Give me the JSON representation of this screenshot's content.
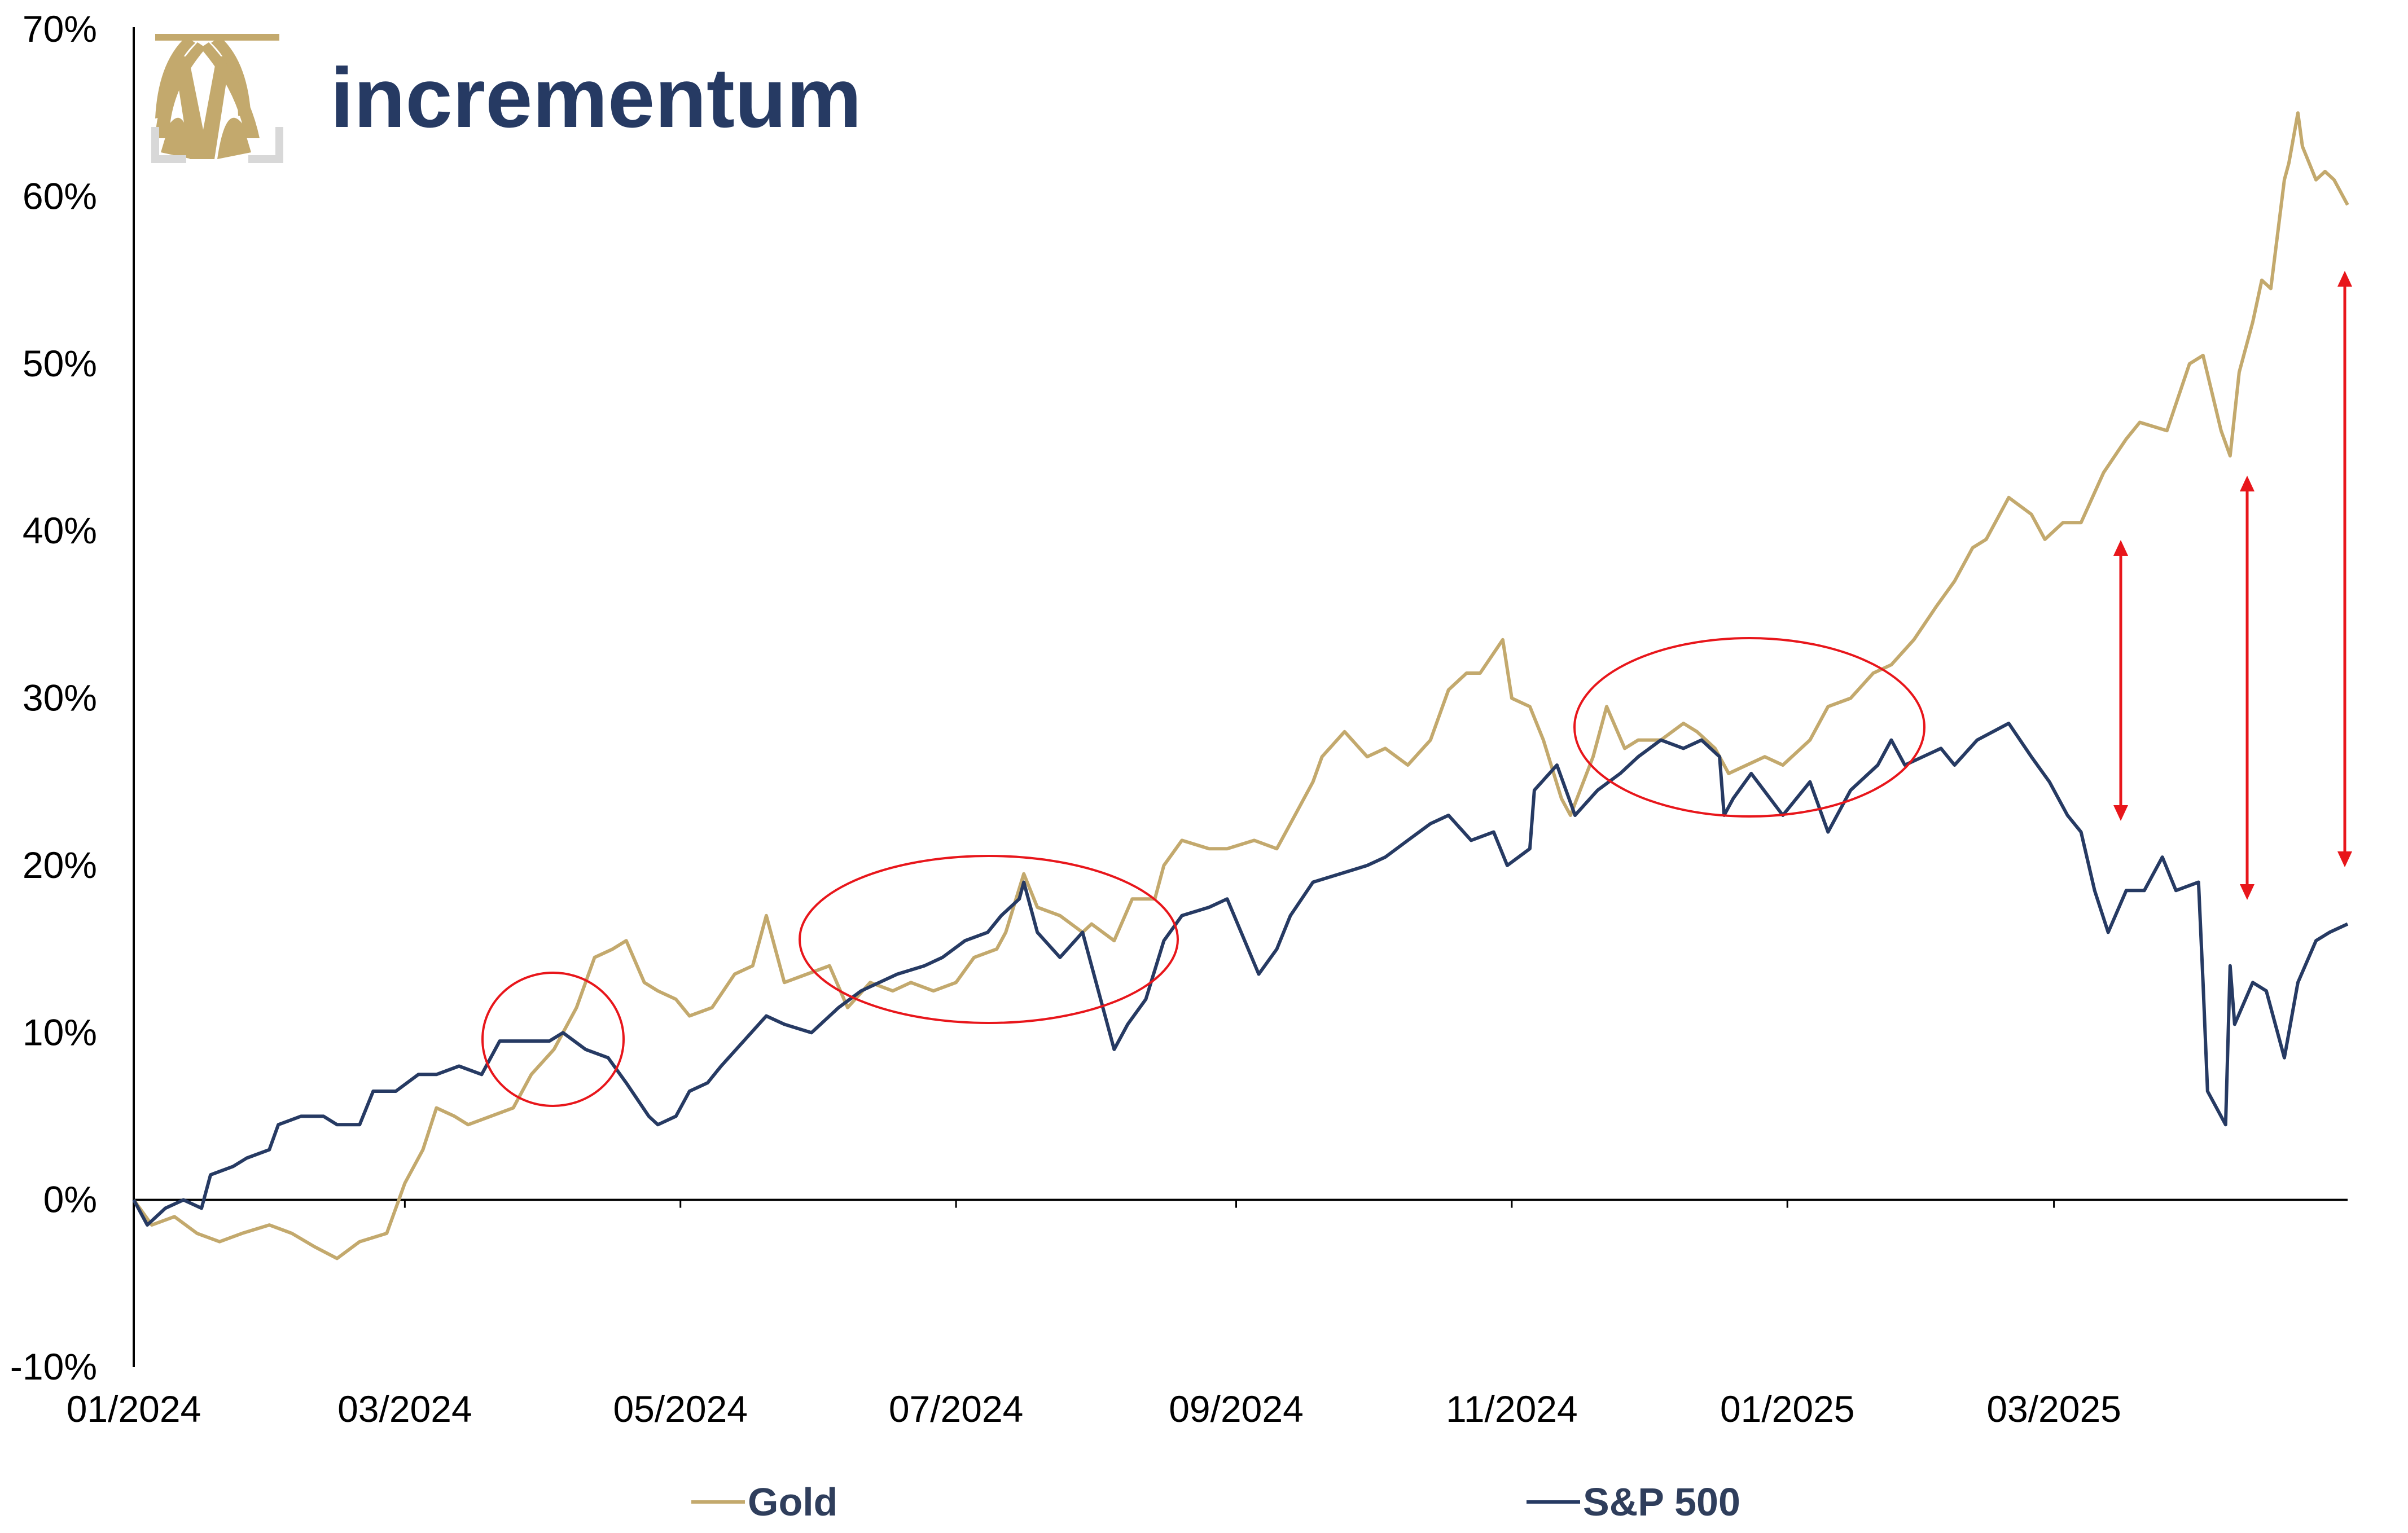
{
  "brand": {
    "name": "incrementum"
  },
  "colors": {
    "gold": "#c3a96d",
    "sp500": "#263a63",
    "annotation": "#e8161b",
    "axis": "#000000"
  },
  "chart_data": {
    "type": "line",
    "title": "",
    "xlabel": "",
    "ylabel": "",
    "ylim": [
      -10,
      70
    ],
    "xlim": [
      "2024-01-01",
      "2025-05-05"
    ],
    "y_ticks": [
      "-10%",
      "0%",
      "10%",
      "20%",
      "30%",
      "40%",
      "50%",
      "60%",
      "70%"
    ],
    "x_ticks": [
      "01/2024",
      "03/2024",
      "05/2024",
      "07/2024",
      "09/2024",
      "11/2024",
      "01/2025",
      "03/2025"
    ],
    "legend_position": "bottom",
    "grid": false,
    "series": [
      {
        "name": "Gold",
        "points": [
          [
            "2024-01-01",
            0.0
          ],
          [
            "2024-01-05",
            -1.5
          ],
          [
            "2024-01-10",
            -1.0
          ],
          [
            "2024-01-15",
            -2.0
          ],
          [
            "2024-01-20",
            -2.5
          ],
          [
            "2024-01-25",
            -2.0
          ],
          [
            "2024-01-31",
            -1.5
          ],
          [
            "2024-02-05",
            -2.0
          ],
          [
            "2024-02-10",
            -2.8
          ],
          [
            "2024-02-15",
            -3.5
          ],
          [
            "2024-02-20",
            -2.5
          ],
          [
            "2024-02-26",
            -2.0
          ],
          [
            "2024-03-01",
            1.0
          ],
          [
            "2024-03-05",
            3.0
          ],
          [
            "2024-03-08",
            5.5
          ],
          [
            "2024-03-12",
            5.0
          ],
          [
            "2024-03-15",
            4.5
          ],
          [
            "2024-03-20",
            5.0
          ],
          [
            "2024-03-25",
            5.5
          ],
          [
            "2024-03-29",
            7.5
          ],
          [
            "2024-04-03",
            9.0
          ],
          [
            "2024-04-08",
            11.5
          ],
          [
            "2024-04-12",
            14.5
          ],
          [
            "2024-04-16",
            15.0
          ],
          [
            "2024-04-19",
            15.5
          ],
          [
            "2024-04-23",
            13.0
          ],
          [
            "2024-04-26",
            12.5
          ],
          [
            "2024-04-30",
            12.0
          ],
          [
            "2024-05-03",
            11.0
          ],
          [
            "2024-05-08",
            11.5
          ],
          [
            "2024-05-13",
            13.5
          ],
          [
            "2024-05-17",
            14.0
          ],
          [
            "2024-05-20",
            17.0
          ],
          [
            "2024-05-24",
            13.0
          ],
          [
            "2024-05-29",
            13.5
          ],
          [
            "2024-06-03",
            14.0
          ],
          [
            "2024-06-07",
            11.5
          ],
          [
            "2024-06-12",
            13.0
          ],
          [
            "2024-06-17",
            12.5
          ],
          [
            "2024-06-21",
            13.0
          ],
          [
            "2024-06-26",
            12.5
          ],
          [
            "2024-07-01",
            13.0
          ],
          [
            "2024-07-05",
            14.5
          ],
          [
            "2024-07-10",
            15.0
          ],
          [
            "2024-07-12",
            16.0
          ],
          [
            "2024-07-16",
            19.5
          ],
          [
            "2024-07-19",
            17.5
          ],
          [
            "2024-07-24",
            17.0
          ],
          [
            "2024-07-29",
            16.0
          ],
          [
            "2024-07-31",
            16.5
          ],
          [
            "2024-08-05",
            15.5
          ],
          [
            "2024-08-09",
            18.0
          ],
          [
            "2024-08-14",
            18.0
          ],
          [
            "2024-08-16",
            20.0
          ],
          [
            "2024-08-20",
            21.5
          ],
          [
            "2024-08-26",
            21.0
          ],
          [
            "2024-08-30",
            21.0
          ],
          [
            "2024-09-05",
            21.5
          ],
          [
            "2024-09-10",
            21.0
          ],
          [
            "2024-09-13",
            22.5
          ],
          [
            "2024-09-18",
            25.0
          ],
          [
            "2024-09-20",
            26.5
          ],
          [
            "2024-09-25",
            28.0
          ],
          [
            "2024-09-30",
            26.5
          ],
          [
            "2024-10-04",
            27.0
          ],
          [
            "2024-10-09",
            26.0
          ],
          [
            "2024-10-14",
            27.5
          ],
          [
            "2024-10-18",
            30.5
          ],
          [
            "2024-10-22",
            31.5
          ],
          [
            "2024-10-25",
            31.5
          ],
          [
            "2024-10-30",
            33.5
          ],
          [
            "2024-11-01",
            30.0
          ],
          [
            "2024-11-05",
            29.5
          ],
          [
            "2024-11-08",
            27.5
          ],
          [
            "2024-11-12",
            24.0
          ],
          [
            "2024-11-14",
            23.0
          ],
          [
            "2024-11-19",
            26.5
          ],
          [
            "2024-11-22",
            29.5
          ],
          [
            "2024-11-26",
            27.0
          ],
          [
            "2024-11-29",
            27.5
          ],
          [
            "2024-12-04",
            27.5
          ],
          [
            "2024-12-09",
            28.5
          ],
          [
            "2024-12-12",
            28.0
          ],
          [
            "2024-12-16",
            27.0
          ],
          [
            "2024-12-19",
            25.5
          ],
          [
            "2024-12-23",
            26.0
          ],
          [
            "2024-12-27",
            26.5
          ],
          [
            "2024-12-31",
            26.0
          ],
          [
            "2025-01-06",
            27.5
          ],
          [
            "2025-01-10",
            29.5
          ],
          [
            "2025-01-15",
            30.0
          ],
          [
            "2025-01-20",
            31.5
          ],
          [
            "2025-01-24",
            32.0
          ],
          [
            "2025-01-29",
            33.5
          ],
          [
            "2025-02-03",
            35.5
          ],
          [
            "2025-02-07",
            37.0
          ],
          [
            "2025-02-11",
            39.0
          ],
          [
            "2025-02-14",
            39.5
          ],
          [
            "2025-02-19",
            42.0
          ],
          [
            "2025-02-24",
            41.0
          ],
          [
            "2025-02-27",
            39.5
          ],
          [
            "2025-03-03",
            40.5
          ],
          [
            "2025-03-07",
            40.5
          ],
          [
            "2025-03-12",
            43.5
          ],
          [
            "2025-03-17",
            45.5
          ],
          [
            "2025-03-20",
            46.5
          ],
          [
            "2025-03-26",
            46.0
          ],
          [
            "2025-03-31",
            50.0
          ],
          [
            "2025-04-03",
            50.5
          ],
          [
            "2025-04-07",
            46.0
          ],
          [
            "2025-04-09",
            44.5
          ],
          [
            "2025-04-11",
            49.5
          ],
          [
            "2025-04-14",
            52.5
          ],
          [
            "2025-04-16",
            55.0
          ],
          [
            "2025-04-18",
            54.5
          ],
          [
            "2025-04-21",
            61.0
          ],
          [
            "2025-04-22",
            62.0
          ],
          [
            "2025-04-24",
            65.0
          ],
          [
            "2025-04-25",
            63.0
          ],
          [
            "2025-04-28",
            61.0
          ],
          [
            "2025-04-30",
            61.5
          ],
          [
            "2025-05-02",
            61.0
          ],
          [
            "2025-05-05",
            59.5
          ]
        ]
      },
      {
        "name": "S&P 500",
        "points": [
          [
            "2024-01-01",
            0.0
          ],
          [
            "2024-01-04",
            -1.5
          ],
          [
            "2024-01-08",
            -0.5
          ],
          [
            "2024-01-12",
            0.0
          ],
          [
            "2024-01-16",
            -0.5
          ],
          [
            "2024-01-18",
            1.5
          ],
          [
            "2024-01-23",
            2.0
          ],
          [
            "2024-01-26",
            2.5
          ],
          [
            "2024-01-31",
            3.0
          ],
          [
            "2024-02-02",
            4.5
          ],
          [
            "2024-02-07",
            5.0
          ],
          [
            "2024-02-12",
            5.0
          ],
          [
            "2024-02-15",
            4.5
          ],
          [
            "2024-02-20",
            4.5
          ],
          [
            "2024-02-23",
            6.5
          ],
          [
            "2024-02-28",
            6.5
          ],
          [
            "2024-03-04",
            7.5
          ],
          [
            "2024-03-08",
            7.5
          ],
          [
            "2024-03-13",
            8.0
          ],
          [
            "2024-03-18",
            7.5
          ],
          [
            "2024-03-22",
            9.5
          ],
          [
            "2024-03-27",
            9.5
          ],
          [
            "2024-04-02",
            9.5
          ],
          [
            "2024-04-05",
            10.0
          ],
          [
            "2024-04-10",
            9.0
          ],
          [
            "2024-04-15",
            8.5
          ],
          [
            "2024-04-19",
            7.0
          ],
          [
            "2024-04-24",
            5.0
          ],
          [
            "2024-04-26",
            4.5
          ],
          [
            "2024-04-30",
            5.0
          ],
          [
            "2024-05-03",
            6.5
          ],
          [
            "2024-05-07",
            7.0
          ],
          [
            "2024-05-10",
            8.0
          ],
          [
            "2024-05-15",
            9.5
          ],
          [
            "2024-05-20",
            11.0
          ],
          [
            "2024-05-24",
            10.5
          ],
          [
            "2024-05-30",
            10.0
          ],
          [
            "2024-06-05",
            11.5
          ],
          [
            "2024-06-10",
            12.5
          ],
          [
            "2024-06-14",
            13.0
          ],
          [
            "2024-06-18",
            13.5
          ],
          [
            "2024-06-24",
            14.0
          ],
          [
            "2024-06-28",
            14.5
          ],
          [
            "2024-07-03",
            15.5
          ],
          [
            "2024-07-08",
            16.0
          ],
          [
            "2024-07-11",
            17.0
          ],
          [
            "2024-07-15",
            18.0
          ],
          [
            "2024-07-16",
            19.0
          ],
          [
            "2024-07-19",
            16.0
          ],
          [
            "2024-07-24",
            14.5
          ],
          [
            "2024-07-29",
            16.0
          ],
          [
            "2024-08-01",
            13.0
          ],
          [
            "2024-08-05",
            9.0
          ],
          [
            "2024-08-08",
            10.5
          ],
          [
            "2024-08-12",
            12.0
          ],
          [
            "2024-08-16",
            15.5
          ],
          [
            "2024-08-20",
            17.0
          ],
          [
            "2024-08-26",
            17.5
          ],
          [
            "2024-08-30",
            18.0
          ],
          [
            "2024-09-06",
            13.5
          ],
          [
            "2024-09-10",
            15.0
          ],
          [
            "2024-09-13",
            17.0
          ],
          [
            "2024-09-18",
            19.0
          ],
          [
            "2024-09-24",
            19.5
          ],
          [
            "2024-09-30",
            20.0
          ],
          [
            "2024-10-04",
            20.5
          ],
          [
            "2024-10-09",
            21.5
          ],
          [
            "2024-10-14",
            22.5
          ],
          [
            "2024-10-18",
            23.0
          ],
          [
            "2024-10-23",
            21.5
          ],
          [
            "2024-10-28",
            22.0
          ],
          [
            "2024-10-31",
            20.0
          ],
          [
            "2024-11-05",
            21.0
          ],
          [
            "2024-11-06",
            24.5
          ],
          [
            "2024-11-11",
            26.0
          ],
          [
            "2024-11-15",
            23.0
          ],
          [
            "2024-11-20",
            24.5
          ],
          [
            "2024-11-25",
            25.5
          ],
          [
            "2024-11-29",
            26.5
          ],
          [
            "2024-12-04",
            27.5
          ],
          [
            "2024-12-09",
            27.0
          ],
          [
            "2024-12-13",
            27.5
          ],
          [
            "2024-12-17",
            26.5
          ],
          [
            "2024-12-18",
            23.0
          ],
          [
            "2024-12-20",
            24.0
          ],
          [
            "2024-12-24",
            25.5
          ],
          [
            "2024-12-31",
            23.0
          ],
          [
            "2025-01-06",
            25.0
          ],
          [
            "2025-01-10",
            22.0
          ],
          [
            "2025-01-15",
            24.5
          ],
          [
            "2025-01-21",
            26.0
          ],
          [
            "2025-01-24",
            27.5
          ],
          [
            "2025-01-27",
            26.0
          ],
          [
            "2025-01-31",
            26.5
          ],
          [
            "2025-02-04",
            27.0
          ],
          [
            "2025-02-07",
            26.0
          ],
          [
            "2025-02-12",
            27.5
          ],
          [
            "2025-02-19",
            28.5
          ],
          [
            "2025-02-24",
            26.5
          ],
          [
            "2025-02-28",
            25.0
          ],
          [
            "2025-03-04",
            23.0
          ],
          [
            "2025-03-07",
            22.0
          ],
          [
            "2025-03-10",
            18.5
          ],
          [
            "2025-03-13",
            16.0
          ],
          [
            "2025-03-17",
            18.5
          ],
          [
            "2025-03-21",
            18.5
          ],
          [
            "2025-03-25",
            20.5
          ],
          [
            "2025-03-28",
            18.5
          ],
          [
            "2025-04-02",
            19.0
          ],
          [
            "2025-04-03",
            13.0
          ],
          [
            "2025-04-04",
            6.5
          ],
          [
            "2025-04-08",
            4.5
          ],
          [
            "2025-04-09",
            14.0
          ],
          [
            "2025-04-10",
            10.5
          ],
          [
            "2025-04-14",
            13.0
          ],
          [
            "2025-04-17",
            12.5
          ],
          [
            "2025-04-21",
            8.5
          ],
          [
            "2025-04-24",
            13.0
          ],
          [
            "2025-04-28",
            15.5
          ],
          [
            "2025-05-01",
            16.0
          ],
          [
            "2025-05-05",
            16.5
          ]
        ]
      }
    ]
  }
}
